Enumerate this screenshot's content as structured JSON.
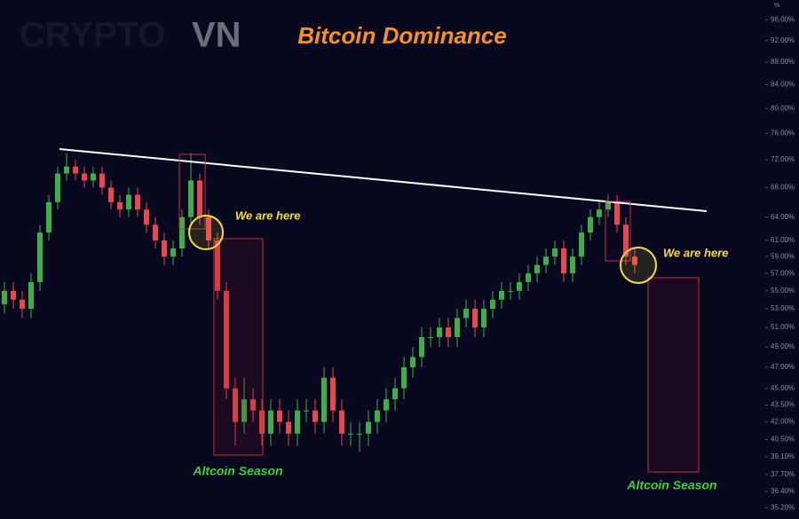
{
  "chart_data": {
    "type": "candlestick",
    "title": "Bitcoin Dominance",
    "watermark": [
      "CRYPTO",
      "VN"
    ],
    "y_unit": "%",
    "log_scale": true,
    "grid": false,
    "up_color": "#3fae49",
    "down_color": "#e8474f",
    "ylim": [
      34.4,
      100
    ],
    "yticks": [
      {
        "value": 96,
        "label": "96.00%"
      },
      {
        "value": 92,
        "label": "92.00%"
      },
      {
        "value": 88,
        "label": "88.00%"
      },
      {
        "value": 84,
        "label": "84.00%"
      },
      {
        "value": 80,
        "label": "80.00%"
      },
      {
        "value": 76,
        "label": "76.00%"
      },
      {
        "value": 72,
        "label": "72.00%"
      },
      {
        "value": 68,
        "label": "68.00%"
      },
      {
        "value": 64,
        "label": "64.00%"
      },
      {
        "value": 61,
        "label": "61.00%"
      },
      {
        "value": 59,
        "label": "59.00%"
      },
      {
        "value": 57,
        "label": "57.00%"
      },
      {
        "value": 55,
        "label": "55.00%"
      },
      {
        "value": 53,
        "label": "53.00%"
      },
      {
        "value": 51,
        "label": "51.00%"
      },
      {
        "value": 49,
        "label": "49.00%"
      },
      {
        "value": 47,
        "label": "47.00%"
      },
      {
        "value": 45,
        "label": "45.00%"
      },
      {
        "value": 43.5,
        "label": "43.50%"
      },
      {
        "value": 42,
        "label": "42.00%"
      },
      {
        "value": 40.5,
        "label": "40.50%"
      },
      {
        "value": 39.1,
        "label": "39.10%"
      },
      {
        "value": 37.7,
        "label": "37.70%"
      },
      {
        "value": 36.4,
        "label": "36.40%"
      },
      {
        "value": 35.2,
        "label": "35.20%"
      }
    ],
    "open": [
      53.5,
      55,
      54,
      53,
      56,
      62,
      66,
      70,
      71,
      70,
      69,
      70,
      68,
      66,
      65,
      67,
      65,
      63,
      61,
      59,
      60,
      64,
      69,
      64,
      61,
      55,
      45,
      42,
      44,
      43,
      41,
      43,
      42,
      41,
      43,
      43,
      42,
      46,
      43,
      41,
      41,
      41,
      42,
      43,
      44,
      45,
      47,
      48,
      50,
      50,
      51,
      50,
      52,
      53,
      51,
      53,
      54,
      55,
      55,
      56,
      57,
      58,
      59,
      60,
      57,
      59,
      62,
      64,
      65,
      66,
      63,
      59
    ],
    "close": [
      55,
      54,
      53,
      56,
      62,
      66,
      70,
      71,
      70,
      69,
      70,
      68,
      66,
      65,
      67,
      65,
      63,
      61,
      59,
      60,
      64,
      69,
      64,
      61,
      55,
      45,
      42,
      44,
      43,
      41,
      43,
      42,
      41,
      43,
      43,
      42,
      46,
      43,
      41,
      41,
      41,
      42,
      43,
      44,
      45,
      47,
      48,
      50,
      50,
      51,
      50,
      52,
      53,
      51,
      53,
      54,
      55,
      55,
      56,
      57,
      58,
      59,
      60,
      57,
      59,
      62,
      64,
      65,
      66,
      63,
      59,
      58
    ],
    "high": [
      56,
      56,
      55,
      57,
      63,
      67,
      71,
      73,
      72,
      71,
      71,
      71,
      69,
      67,
      68,
      68,
      66,
      64,
      62,
      61,
      65,
      73,
      70,
      65,
      62,
      56,
      46,
      46,
      45,
      44,
      44,
      44,
      43,
      44,
      44,
      44,
      47,
      47,
      44,
      42,
      42,
      43,
      44,
      45,
      46,
      48,
      49,
      51,
      51,
      52,
      52,
      53,
      54,
      54,
      54,
      55,
      56,
      56,
      57,
      58,
      59,
      60,
      61,
      61,
      60,
      63,
      65,
      66,
      67,
      67,
      64,
      60
    ],
    "low": [
      52.5,
      53,
      52,
      52,
      55,
      61,
      65,
      69,
      69,
      68,
      68,
      67,
      65,
      64,
      64,
      64,
      62,
      60,
      58,
      58,
      59,
      63,
      63,
      60,
      54,
      44,
      40,
      41,
      42,
      40,
      40,
      41,
      40,
      40,
      42,
      41,
      41,
      42,
      40,
      40,
      39.5,
      40,
      41,
      42,
      43,
      44,
      46,
      47,
      49,
      49,
      49,
      49,
      51,
      50,
      50,
      52,
      53,
      54,
      54,
      55,
      56,
      57,
      58,
      56,
      56,
      58,
      61,
      63,
      64,
      62,
      58,
      57
    ],
    "annotations": [
      "We are here",
      "We are here",
      "Altcoin Season",
      "Altcoin Season"
    ]
  }
}
